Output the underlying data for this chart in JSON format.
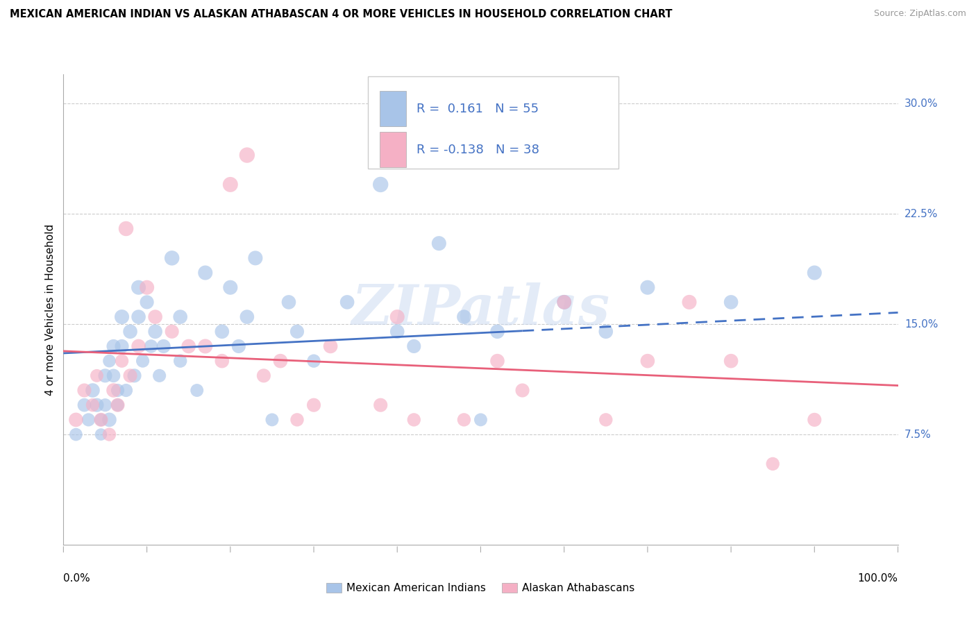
{
  "title": "MEXICAN AMERICAN INDIAN VS ALASKAN ATHABASCAN 4 OR MORE VEHICLES IN HOUSEHOLD CORRELATION CHART",
  "source": "Source: ZipAtlas.com",
  "ylabel": "4 or more Vehicles in Household",
  "ylim": [
    0.0,
    0.32
  ],
  "xlim": [
    0.0,
    1.0
  ],
  "yticks": [
    0.075,
    0.15,
    0.225,
    0.3
  ],
  "ytick_labels": [
    "7.5%",
    "15.0%",
    "22.5%",
    "30.0%"
  ],
  "r_blue": 0.161,
  "n_blue": 55,
  "r_pink": -0.138,
  "n_pink": 38,
  "blue_fill": "#a8c4e8",
  "pink_fill": "#f5b0c5",
  "line_blue": "#4472c4",
  "line_pink": "#e8607a",
  "tick_color": "#4472c4",
  "watermark": "ZIPatlas",
  "legend_label_blue": "Mexican American Indians",
  "legend_label_pink": "Alaskan Athabascans",
  "blue_x": [
    0.015,
    0.025,
    0.03,
    0.035,
    0.04,
    0.045,
    0.045,
    0.05,
    0.05,
    0.055,
    0.055,
    0.06,
    0.06,
    0.065,
    0.065,
    0.07,
    0.07,
    0.075,
    0.08,
    0.085,
    0.09,
    0.09,
    0.095,
    0.1,
    0.105,
    0.11,
    0.115,
    0.12,
    0.13,
    0.14,
    0.14,
    0.16,
    0.17,
    0.19,
    0.2,
    0.21,
    0.22,
    0.23,
    0.25,
    0.27,
    0.28,
    0.3,
    0.34,
    0.38,
    0.4,
    0.42,
    0.45,
    0.48,
    0.5,
    0.52,
    0.6,
    0.65,
    0.7,
    0.8,
    0.9
  ],
  "blue_y": [
    0.075,
    0.095,
    0.085,
    0.105,
    0.095,
    0.085,
    0.075,
    0.115,
    0.095,
    0.085,
    0.125,
    0.135,
    0.115,
    0.105,
    0.095,
    0.155,
    0.135,
    0.105,
    0.145,
    0.115,
    0.175,
    0.155,
    0.125,
    0.165,
    0.135,
    0.145,
    0.115,
    0.135,
    0.195,
    0.155,
    0.125,
    0.105,
    0.185,
    0.145,
    0.175,
    0.135,
    0.155,
    0.195,
    0.085,
    0.165,
    0.145,
    0.125,
    0.165,
    0.245,
    0.145,
    0.135,
    0.205,
    0.155,
    0.085,
    0.145,
    0.165,
    0.145,
    0.175,
    0.165,
    0.185
  ],
  "blue_s": [
    180,
    200,
    190,
    220,
    210,
    180,
    160,
    210,
    190,
    220,
    180,
    210,
    200,
    190,
    180,
    230,
    210,
    190,
    220,
    210,
    230,
    220,
    190,
    210,
    195,
    220,
    190,
    210,
    240,
    220,
    195,
    185,
    230,
    220,
    230,
    210,
    220,
    230,
    185,
    220,
    210,
    195,
    220,
    260,
    220,
    210,
    230,
    220,
    185,
    220,
    230,
    220,
    230,
    220,
    230
  ],
  "pink_x": [
    0.015,
    0.025,
    0.035,
    0.04,
    0.045,
    0.055,
    0.06,
    0.065,
    0.07,
    0.075,
    0.08,
    0.09,
    0.1,
    0.11,
    0.13,
    0.15,
    0.17,
    0.19,
    0.2,
    0.22,
    0.24,
    0.26,
    0.28,
    0.3,
    0.32,
    0.38,
    0.4,
    0.42,
    0.48,
    0.52,
    0.55,
    0.6,
    0.65,
    0.7,
    0.75,
    0.8,
    0.85,
    0.9
  ],
  "pink_y": [
    0.085,
    0.105,
    0.095,
    0.115,
    0.085,
    0.075,
    0.105,
    0.095,
    0.125,
    0.215,
    0.115,
    0.135,
    0.175,
    0.155,
    0.145,
    0.135,
    0.135,
    0.125,
    0.245,
    0.265,
    0.115,
    0.125,
    0.085,
    0.095,
    0.135,
    0.095,
    0.155,
    0.085,
    0.085,
    0.125,
    0.105,
    0.165,
    0.085,
    0.125,
    0.165,
    0.125,
    0.055,
    0.085
  ],
  "pink_s": [
    220,
    210,
    195,
    185,
    210,
    195,
    220,
    210,
    195,
    240,
    210,
    220,
    230,
    220,
    210,
    220,
    230,
    220,
    250,
    260,
    210,
    220,
    195,
    210,
    220,
    210,
    230,
    195,
    195,
    220,
    210,
    220,
    195,
    220,
    230,
    220,
    195,
    210
  ]
}
